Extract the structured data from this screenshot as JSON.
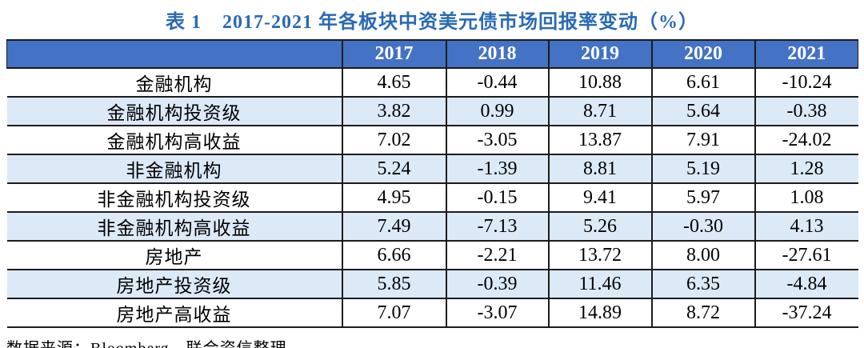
{
  "title": {
    "prefix": "表 1",
    "text": "2017-2021 年各板块中资美元债市场回报率变动（%）"
  },
  "table": {
    "corner": "",
    "years": [
      "2017",
      "2018",
      "2019",
      "2020",
      "2021"
    ],
    "rows": [
      {
        "label": "金融机构",
        "values": [
          "4.65",
          "-0.44",
          "10.88",
          "6.61",
          "-10.24"
        ]
      },
      {
        "label": "金融机构投资级",
        "values": [
          "3.82",
          "0.99",
          "8.71",
          "5.64",
          "-0.38"
        ]
      },
      {
        "label": "金融机构高收益",
        "values": [
          "7.02",
          "-3.05",
          "13.87",
          "7.91",
          "-24.02"
        ]
      },
      {
        "label": "非金融机构",
        "values": [
          "5.24",
          "-1.39",
          "8.81",
          "5.19",
          "1.28"
        ]
      },
      {
        "label": "非金融机构投资级",
        "values": [
          "4.95",
          "-0.15",
          "9.41",
          "5.97",
          "1.08"
        ]
      },
      {
        "label": "非金融机构高收益",
        "values": [
          "7.49",
          "-7.13",
          "5.26",
          "-0.30",
          "4.13"
        ]
      },
      {
        "label": "房地产",
        "values": [
          "6.66",
          "-2.21",
          "13.72",
          "8.00",
          "-27.61"
        ]
      },
      {
        "label": "房地产投资级",
        "values": [
          "5.85",
          "-0.39",
          "11.46",
          "6.35",
          "-4.84"
        ]
      },
      {
        "label": "房地产高收益",
        "values": [
          "7.07",
          "-3.07",
          "14.89",
          "8.72",
          "-37.24"
        ]
      }
    ]
  },
  "source": "数据来源：Bloomberg，联合资信整理",
  "colors": {
    "title_color": "#2a6ab4",
    "header_bg": "#4472c4",
    "alt_row_bg": "#dce9f7",
    "border": "#1c1c1c"
  },
  "chart_data": {
    "type": "table",
    "title": "表 1 2017-2021 年各板块中资美元债市场回报率变动（%）",
    "columns": [
      "",
      "2017",
      "2018",
      "2019",
      "2020",
      "2021"
    ],
    "rows": [
      [
        "金融机构",
        4.65,
        -0.44,
        10.88,
        6.61,
        -10.24
      ],
      [
        "金融机构投资级",
        3.82,
        0.99,
        8.71,
        5.64,
        -0.38
      ],
      [
        "金融机构高收益",
        7.02,
        -3.05,
        13.87,
        7.91,
        -24.02
      ],
      [
        "非金融机构",
        5.24,
        -1.39,
        8.81,
        5.19,
        1.28
      ],
      [
        "非金融机构投资级",
        4.95,
        -0.15,
        9.41,
        5.97,
        1.08
      ],
      [
        "非金融机构高收益",
        7.49,
        -7.13,
        5.26,
        -0.3,
        4.13
      ],
      [
        "房地产",
        6.66,
        -2.21,
        13.72,
        8.0,
        -27.61
      ],
      [
        "房地产投资级",
        5.85,
        -0.39,
        11.46,
        6.35,
        -4.84
      ],
      [
        "房地产高收益",
        7.07,
        -3.07,
        14.89,
        8.72,
        -37.24
      ]
    ],
    "source": "数据来源：Bloomberg，联合资信整理"
  }
}
